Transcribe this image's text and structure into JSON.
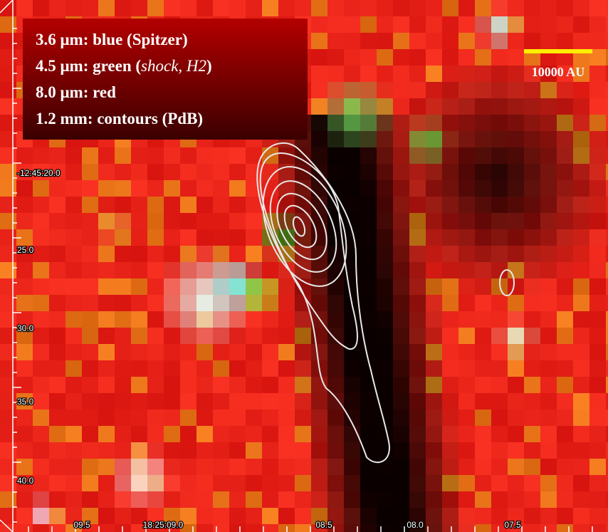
{
  "legend": {
    "lines": [
      [
        "3.6 μm: blue (Spitzer)"
      ],
      [
        "4.5 μm: green (",
        "shock, H2",
        ")"
      ],
      [
        "8.0 μm: red"
      ],
      [
        "1.2 mm: contours (PdB)"
      ]
    ]
  },
  "scale_bar": {
    "label": "10000 AU"
  },
  "axes": {
    "dec_labels": [
      "-12:45:20.0",
      "25.0",
      "30.0",
      "35.0",
      "40.0"
    ],
    "ra_labels": [
      "09.5",
      "18:25:09.0",
      "08.5",
      "08.0",
      "07.5"
    ]
  }
}
